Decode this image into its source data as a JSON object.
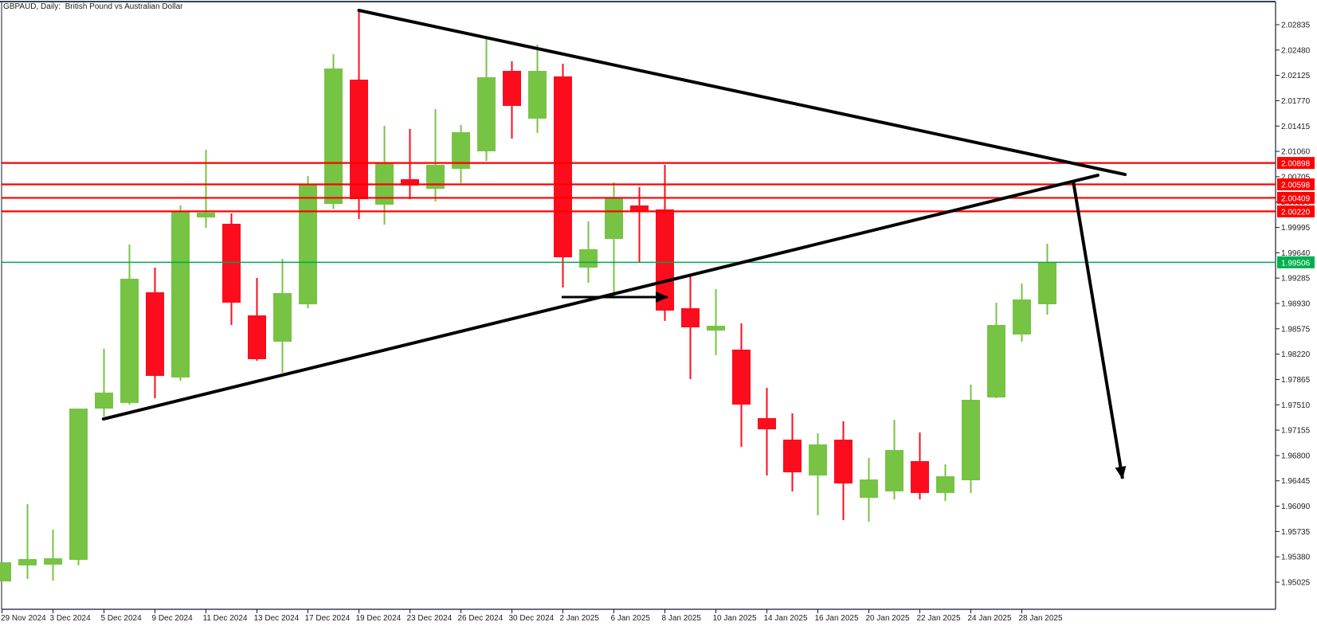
{
  "title": "GBPAUD, Daily:  British Pound vs Australian Dollar",
  "colors": {
    "background": "#ffffff",
    "bull": "#77c344",
    "bear": "#fb0d1d",
    "resistance_line": "#fe0000",
    "current_price_line": "#00a650",
    "current_price_badge": "#00b050",
    "badge_text": "#ffffff",
    "annotation": "#000000",
    "axis_text": "#1c1c1c",
    "border": "#39414f"
  },
  "chart_data": {
    "type": "candlestick",
    "symbol": "GBPAUD",
    "timeframe": "Daily",
    "title": "GBPAUD, Daily:  British Pound vs Australian Dollar",
    "grid": false,
    "price_axis": {
      "side": "right",
      "top_price": 2.02835,
      "bottom_price": 1.95025,
      "tick_step": 0.00355,
      "tick_labels": [
        "2.02835",
        "2.02480",
        "2.02125",
        "2.01770",
        "2.01415",
        "2.01060",
        "2.00705",
        "2.00350",
        "1.99995",
        "1.99640",
        "1.99285",
        "1.98930",
        "1.98575",
        "1.98220",
        "1.97865",
        "1.97510",
        "1.97155",
        "1.96800",
        "1.96445",
        "1.96090",
        "1.95735",
        "1.95380",
        "1.95025"
      ]
    },
    "date_axis": {
      "labels": [
        {
          "bar": 0,
          "text": "29 Nov 2024"
        },
        {
          "bar": 2,
          "text": "3 Dec 2024"
        },
        {
          "bar": 4,
          "text": "5 Dec 2024"
        },
        {
          "bar": 6,
          "text": "9 Dec 2024"
        },
        {
          "bar": 8,
          "text": "11 Dec 2024"
        },
        {
          "bar": 10,
          "text": "13 Dec 2024"
        },
        {
          "bar": 12,
          "text": "17 Dec 2024"
        },
        {
          "bar": 14,
          "text": "19 Dec 2024"
        },
        {
          "bar": 16,
          "text": "23 Dec 2024"
        },
        {
          "bar": 18,
          "text": "26 Dec 2024"
        },
        {
          "bar": 20,
          "text": "30 Dec 2024"
        },
        {
          "bar": 22,
          "text": "2 Jan 2025"
        },
        {
          "bar": 24,
          "text": "6 Jan 2025"
        },
        {
          "bar": 26,
          "text": "8 Jan 2025"
        },
        {
          "bar": 28,
          "text": "10 Jan 2025"
        },
        {
          "bar": 30,
          "text": "14 Jan 2025"
        },
        {
          "bar": 32,
          "text": "16 Jan 2025"
        },
        {
          "bar": 34,
          "text": "20 Jan 2025"
        },
        {
          "bar": 36,
          "text": "22 Jan 2025"
        },
        {
          "bar": 38,
          "text": "24 Jan 2025"
        },
        {
          "bar": 40,
          "text": "28 Jan 2025"
        }
      ]
    },
    "candles": [
      {
        "date": "29 Nov 2024",
        "o": 1.95036,
        "h": 1.95304,
        "l": 1.95036,
        "c": 1.95304
      },
      {
        "date": "2 Dec 2024",
        "o": 1.9526,
        "h": 1.96118,
        "l": 1.9507,
        "c": 1.95349
      },
      {
        "date": "3 Dec 2024",
        "o": 1.95271,
        "h": 1.95761,
        "l": 1.95047,
        "c": 1.9536
      },
      {
        "date": "4 Dec 2024",
        "o": 1.95338,
        "h": 1.97457,
        "l": 1.9526,
        "c": 1.97457
      },
      {
        "date": "5 Dec 2024",
        "o": 1.97457,
        "h": 1.98295,
        "l": 1.97346,
        "c": 1.97681
      },
      {
        "date": "6 Dec 2024",
        "o": 1.97536,
        "h": 1.99756,
        "l": 1.97513,
        "c": 1.99276
      },
      {
        "date": "9 Dec 2024",
        "o": 1.99086,
        "h": 1.99432,
        "l": 1.97602,
        "c": 1.97915
      },
      {
        "date": "10 Dec 2024",
        "o": 1.97893,
        "h": 2.00302,
        "l": 1.97848,
        "c": 2.00213
      },
      {
        "date": "11 Dec 2024",
        "o": 2.00135,
        "h": 2.01083,
        "l": 1.9999,
        "c": 2.00202
      },
      {
        "date": "12 Dec 2024",
        "o": 2.00046,
        "h": 2.00191,
        "l": 1.98629,
        "c": 1.98941
      },
      {
        "date": "13 Dec 2024",
        "o": 1.98763,
        "h": 1.99287,
        "l": 1.98127,
        "c": 1.98149
      },
      {
        "date": "16 Dec 2024",
        "o": 1.98394,
        "h": 1.99555,
        "l": 1.9796,
        "c": 1.99075
      },
      {
        "date": "17 Dec 2024",
        "o": 1.98918,
        "h": 2.00716,
        "l": 1.98863,
        "c": 2.00593
      },
      {
        "date": "18 Dec 2024",
        "o": 2.00324,
        "h": 2.02422,
        "l": 2.00257,
        "c": 2.02221
      },
      {
        "date": "19 Dec 2024",
        "o": 2.02065,
        "h": 2.03036,
        "l": 2.00112,
        "c": 2.00391
      },
      {
        "date": "20 Dec 2024",
        "o": 2.00314,
        "h": 2.01418,
        "l": 2.00034,
        "c": 2.00905
      },
      {
        "date": "23 Dec 2024",
        "o": 2.00671,
        "h": 2.01374,
        "l": 2.00392,
        "c": 2.00582
      },
      {
        "date": "24 Dec 2024",
        "o": 2.00537,
        "h": 2.01652,
        "l": 2.00358,
        "c": 2.00872
      },
      {
        "date": "26 Dec 2024",
        "o": 2.00816,
        "h": 2.01429,
        "l": 2.00615,
        "c": 2.01329
      },
      {
        "date": "27 Dec 2024",
        "o": 2.01061,
        "h": 2.02656,
        "l": 2.00927,
        "c": 2.02099
      },
      {
        "date": "30 Dec 2024",
        "o": 2.02188,
        "h": 2.02322,
        "l": 2.0124,
        "c": 2.01697
      },
      {
        "date": "31 Dec 2024",
        "o": 2.01519,
        "h": 2.02556,
        "l": 2.01318,
        "c": 2.02188
      },
      {
        "date": "2 Jan 2025",
        "o": 2.0211,
        "h": 2.02288,
        "l": 1.99153,
        "c": 1.99577
      },
      {
        "date": "3 Jan 2025",
        "o": 1.99432,
        "h": 2.00079,
        "l": 1.9922,
        "c": 1.99689
      },
      {
        "date": "6 Jan 2025",
        "o": 1.99834,
        "h": 2.00626,
        "l": 1.98996,
        "c": 2.00414
      },
      {
        "date": "7 Jan 2025",
        "o": 2.00303,
        "h": 2.00559,
        "l": 1.99499,
        "c": 2.00225
      },
      {
        "date": "8 Jan 2025",
        "o": 2.00247,
        "h": 2.00872,
        "l": 1.98685,
        "c": 1.9883
      },
      {
        "date": "9 Jan 2025",
        "o": 1.98863,
        "h": 1.9932,
        "l": 1.9787,
        "c": 1.98595
      },
      {
        "date": "10 Jan 2025",
        "o": 1.9855,
        "h": 1.99131,
        "l": 1.98205,
        "c": 1.98617
      },
      {
        "date": "13 Jan 2025",
        "o": 1.98283,
        "h": 1.98651,
        "l": 1.96922,
        "c": 1.97513
      },
      {
        "date": "14 Jan 2025",
        "o": 1.97323,
        "h": 1.97747,
        "l": 1.9652,
        "c": 1.97167
      },
      {
        "date": "15 Jan 2025",
        "o": 1.97022,
        "h": 1.9739,
        "l": 1.96297,
        "c": 1.96564
      },
      {
        "date": "16 Jan 2025",
        "o": 1.9652,
        "h": 1.97111,
        "l": 1.95962,
        "c": 1.96955
      },
      {
        "date": "17 Jan 2025",
        "o": 1.97022,
        "h": 1.97279,
        "l": 1.95895,
        "c": 1.96408
      },
      {
        "date": "20 Jan 2025",
        "o": 1.96207,
        "h": 1.96765,
        "l": 1.95873,
        "c": 1.96464
      },
      {
        "date": "21 Jan 2025",
        "o": 1.96297,
        "h": 1.97301,
        "l": 1.96185,
        "c": 1.96877
      },
      {
        "date": "22 Jan 2025",
        "o": 1.96721,
        "h": 1.97122,
        "l": 1.96185,
        "c": 1.96275
      },
      {
        "date": "23 Jan 2025",
        "o": 1.96275,
        "h": 1.96676,
        "l": 1.96163,
        "c": 1.96509
      },
      {
        "date": "24 Jan 2025",
        "o": 1.96453,
        "h": 1.97792,
        "l": 1.96275,
        "c": 1.9758
      },
      {
        "date": "27 Jan 2025",
        "o": 1.97613,
        "h": 1.98941,
        "l": 1.97602,
        "c": 1.98629
      },
      {
        "date": "28 Jan 2025",
        "o": 1.98495,
        "h": 1.99209,
        "l": 1.98395,
        "c": 1.98986
      },
      {
        "date": "29 Jan 2025",
        "o": 1.98919,
        "h": 1.99766,
        "l": 1.98774,
        "c": 1.9951
      }
    ],
    "horizontal_lines": [
      {
        "name": "resistance-line-1",
        "price": 2.00898,
        "label": "2.00898",
        "kind": "resistance"
      },
      {
        "name": "resistance-line-2",
        "price": 2.00598,
        "label": "2.00598",
        "kind": "resistance"
      },
      {
        "name": "resistance-line-3",
        "price": 2.00409,
        "label": "2.00409",
        "kind": "resistance"
      },
      {
        "name": "resistance-line-4",
        "price": 2.0022,
        "label": "2.00220",
        "kind": "resistance"
      },
      {
        "name": "current-price-line",
        "price": 1.99506,
        "label": "1.99506",
        "kind": "current"
      }
    ],
    "annotations": {
      "trendlines": [
        {
          "name": "descending-trendline",
          "x1_bar": 14.0,
          "price1": 2.03036,
          "x2_bar": 44.05,
          "price2": 2.00737,
          "width": 4
        },
        {
          "name": "ascending-trendline",
          "x1_bar": 3.98,
          "price1": 1.97312,
          "x2_bar": 42.98,
          "price2": 2.00726,
          "width": 4
        }
      ],
      "arrows": [
        {
          "name": "entry-arrow",
          "x1_bar": 21.95,
          "price1": 1.99019,
          "x2_bar": 26.11,
          "price2": 1.99019,
          "width": 3
        },
        {
          "name": "breakdown-arrow",
          "x1_bar": 42.02,
          "price1": 2.00637,
          "x2_bar": 43.95,
          "price2": 1.96476,
          "width": 4
        }
      ],
      "pattern": "symmetrical triangle with projected breakdown"
    }
  }
}
